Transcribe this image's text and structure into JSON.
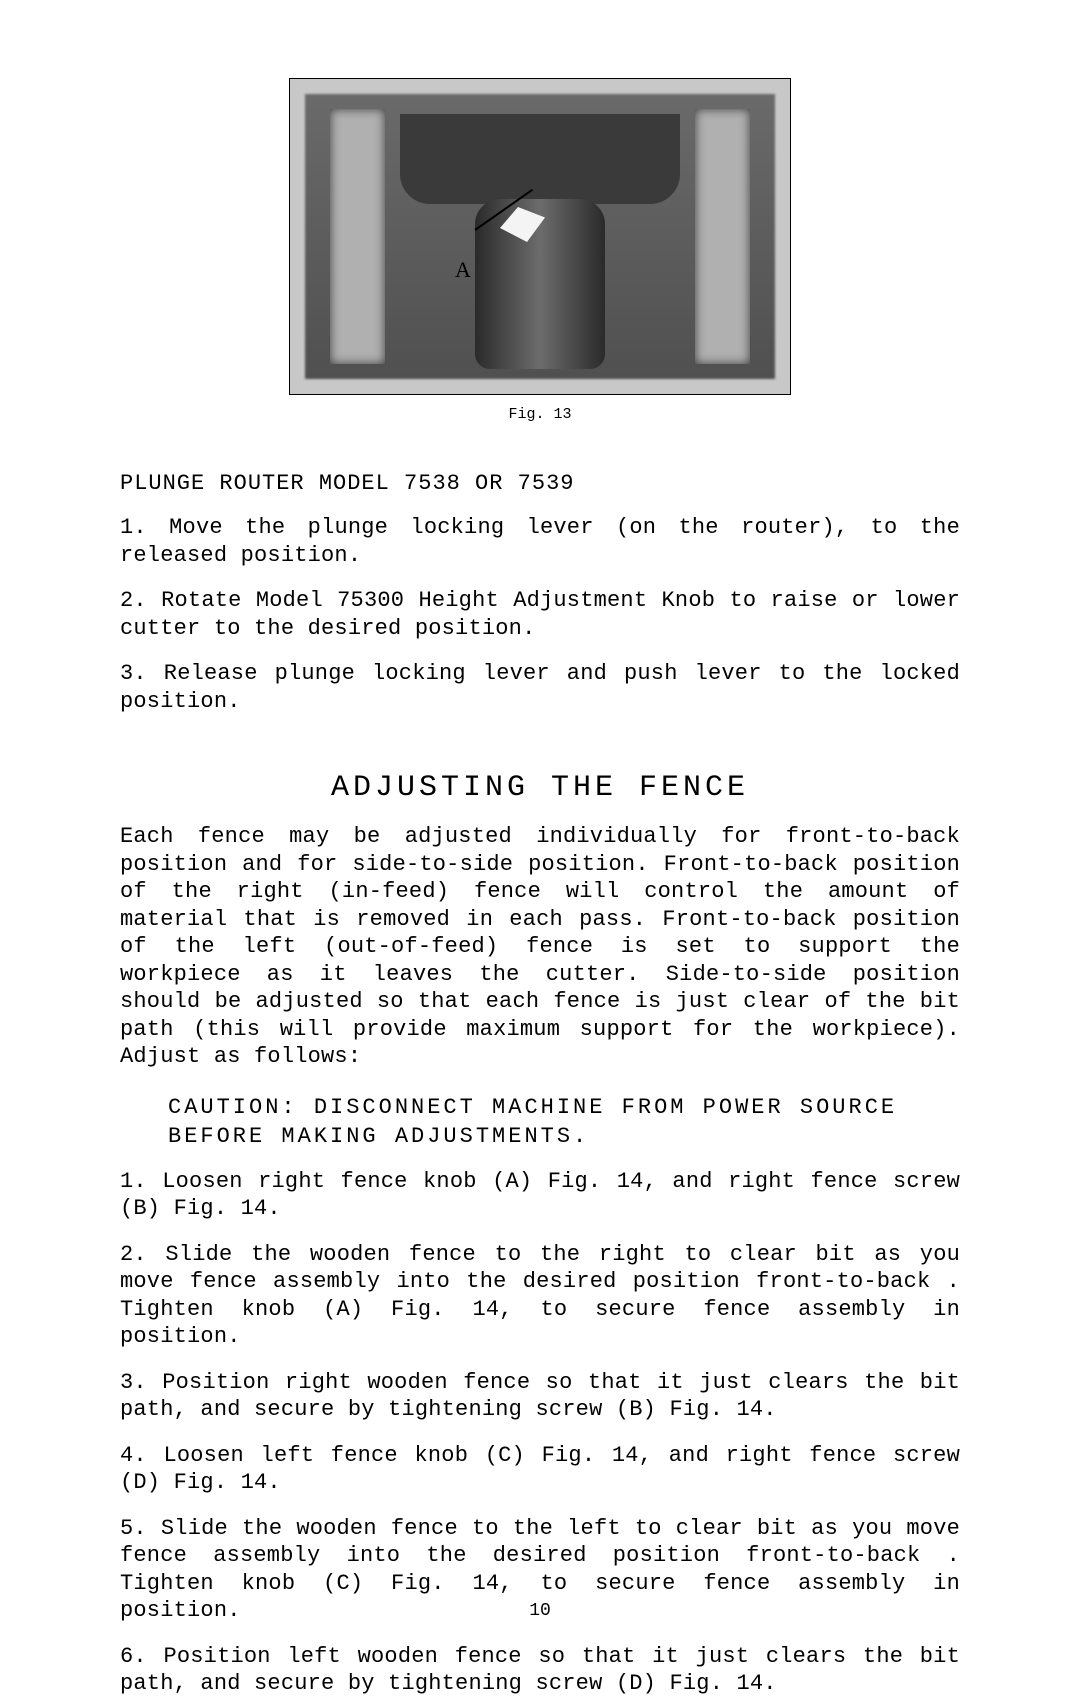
{
  "figure": {
    "caption": "Fig. 13",
    "label_A": "A"
  },
  "section1": {
    "title": "PLUNGE ROUTER MODEL 7538 OR 7539",
    "items": [
      "1.  Move the plunge locking lever (on the router), to the released position.",
      "2.  Rotate Model 75300 Height Adjustment Knob to raise or lower cutter to the desired position.",
      "3.  Release plunge locking lever and push lever to the locked position."
    ]
  },
  "heading": "ADJUSTING THE FENCE",
  "intro": "Each fence may be adjusted individually for front-to-back position and for side-to-side position. Front-to-back position of the right (in-feed) fence will control the amount of material that is removed in each pass. Front-to-back position of the left (out-of-feed) fence is set to support the workpiece as it leaves the cutter. Side-to-side position should be adjusted so that each fence is just clear of the bit path (this will provide maximum support for the workpiece). Adjust as follows:",
  "caution": {
    "line1": "CAUTION: DISCONNECT MACHINE FROM POWER SOURCE",
    "line2": "BEFORE MAKING ADJUSTMENTS."
  },
  "steps": [
    "1.  Loosen right fence knob (A) Fig. 14, and right fence screw (B) Fig. 14.",
    "2.  Slide the wooden fence to the right to clear bit as you move fence assembly into the desired position  front-to-back . Tighten knob (A) Fig. 14, to secure fence assembly in position.",
    "3.  Position right wooden fence so that it just clears the bit path, and secure by tightening screw (B) Fig. 14.",
    "4.  Loosen left fence knob (C) Fig. 14, and right fence screw (D) Fig. 14.",
    "5.  Slide the wooden fence to the left to clear bit as you move fence assembly into the desired position  front-to-back . Tighten knob (C) Fig. 14, to secure fence assembly in position.",
    "6.  Position left wooden fence so that it just clears the bit path, and secure by tightening screw (D) Fig. 14."
  ],
  "page_number": "10"
}
